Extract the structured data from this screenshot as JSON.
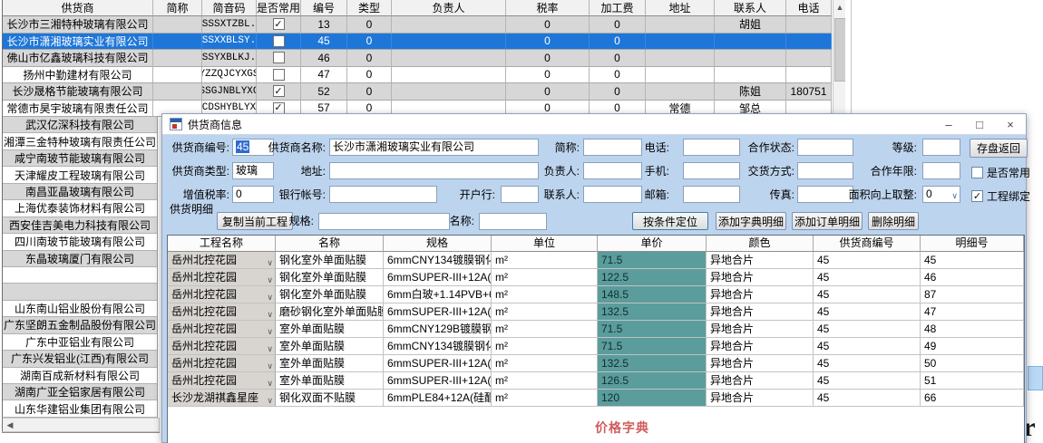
{
  "suppliers_table": {
    "headers": [
      "供货商",
      "简称",
      "简音码",
      "是否常用",
      "编号",
      "类型",
      "负责人",
      "税率",
      "加工费",
      "地址",
      "联系人",
      "电话"
    ],
    "rows": [
      {
        "name": "长沙市三湘特种玻璃有限公司",
        "abbr": "",
        "code": "CSSSXTZBL..",
        "common": true,
        "id": "13",
        "type": "0",
        "owner": "",
        "tax": "0",
        "fee": "0",
        "addr": "",
        "contact": "胡姐",
        "phone": "",
        "shade": true,
        "selected": false
      },
      {
        "name": "长沙市潇湘玻璃实业有限公司",
        "abbr": "",
        "code": "CSSXXBLSY..",
        "common": false,
        "id": "45",
        "type": "0",
        "owner": "",
        "tax": "0",
        "fee": "0",
        "addr": "",
        "contact": "",
        "phone": "",
        "shade": false,
        "selected": true
      },
      {
        "name": "佛山市亿鑫玻璃科技有限公司",
        "abbr": "",
        "code": "FSSYXBLKJ..",
        "common": false,
        "id": "46",
        "type": "0",
        "owner": "",
        "tax": "0",
        "fee": "0",
        "addr": "",
        "contact": "",
        "phone": "",
        "shade": true,
        "selected": false
      },
      {
        "name": "扬州中勤建材有限公司",
        "abbr": "",
        "code": "YZZQJCYXGS",
        "common": false,
        "id": "47",
        "type": "0",
        "owner": "",
        "tax": "0",
        "fee": "0",
        "addr": "",
        "contact": "",
        "phone": "",
        "shade": false,
        "selected": false
      },
      {
        "name": "长沙晟格节能玻璃有限公司",
        "abbr": "",
        "code": "CSSGJNBLYXGS",
        "common": true,
        "id": "52",
        "type": "0",
        "owner": "",
        "tax": "0",
        "fee": "0",
        "addr": "",
        "contact": "陈姐",
        "phone": "180751",
        "shade": true,
        "selected": false
      },
      {
        "name": "常德市昊宇玻璃有限责任公司",
        "abbr": "",
        "code": "CDSHYBLYX",
        "common": true,
        "id": "57",
        "type": "0",
        "owner": "",
        "tax": "0",
        "fee": "0",
        "addr": "常德",
        "contact": "邹总",
        "phone": "",
        "shade": false,
        "selected": false
      }
    ]
  },
  "supplier_list": [
    "武汉亿深科技有限公司",
    "湘潭三金特种玻璃有限责任公司",
    "咸宁南玻节能玻璃有限公司",
    "天津耀皮工程玻璃有限公司",
    "南昌亚晶玻璃有限公司",
    "上海优泰装饰材料有限公司",
    "西安佳吉美电力科技有限公司",
    "四川南玻节能玻璃有限公司",
    "东晶玻璃厦门有限公司",
    "",
    "",
    "山东南山铝业股份有限公司",
    "广东坚朗五金制品股份有限公司",
    "广东中亚铝业有限公司",
    "广东兴发铝业(江西)有限公司",
    "湖南百成新材料有限公司",
    "湖南广亚全铝家居有限公司",
    "山东华建铝业集团有限公司"
  ],
  "dialog": {
    "title": "供货商信息",
    "controls": {
      "minimize": "–",
      "maximize": "□",
      "close": "×"
    },
    "form": {
      "supplier_id": {
        "label": "供货商编号:",
        "value": "45"
      },
      "supplier_name": {
        "label": "供货商名称:",
        "value": "长沙市潇湘玻璃实业有限公司"
      },
      "abbr": {
        "label": "简称:",
        "value": ""
      },
      "phone": {
        "label": "电话:",
        "value": ""
      },
      "coop_status": {
        "label": "合作状态:",
        "value": ""
      },
      "grade": {
        "label": "等级:",
        "value": ""
      },
      "save_button": "存盘返回",
      "supplier_type": {
        "label": "供货商类型:",
        "value": "玻璃"
      },
      "address": {
        "label": "地址:",
        "value": ""
      },
      "owner": {
        "label": "负责人:",
        "value": ""
      },
      "mobile": {
        "label": "手机:",
        "value": ""
      },
      "delivery": {
        "label": "交货方式:",
        "value": ""
      },
      "coop_years": {
        "label": "合作年限:",
        "value": ""
      },
      "common_check": {
        "label": "是否常用",
        "checked": false
      },
      "vat": {
        "label": "增值税率:",
        "value": "0"
      },
      "bank_account": {
        "label": "银行帐号:",
        "value": ""
      },
      "bank": {
        "label": "开户行:",
        "value": ""
      },
      "contact": {
        "label": "联系人:",
        "value": ""
      },
      "email": {
        "label": "邮箱:",
        "value": ""
      },
      "fax": {
        "label": "传真:",
        "value": ""
      },
      "round_up": {
        "label": "面积向上取整:",
        "value": "0"
      },
      "bind_check": {
        "label": "工程绑定",
        "checked": true
      }
    },
    "detail": {
      "section_label": "供货明细",
      "copy_button": "复制当前工程",
      "spec_label": "规格:",
      "name_label": "名称:",
      "locate_button": "按条件定位",
      "add_dict_button": "添加字典明细",
      "add_order_button": "添加订单明细",
      "delete_button": "删除明细",
      "grid": {
        "headers": [
          "工程名称",
          "名称",
          "规格",
          "单位",
          "单价",
          "颜色",
          "供货商编号",
          "明细号"
        ],
        "rows": [
          [
            "岳州北控花园",
            "钢化室外单面贴膜",
            "6mmCNY134镀膜钢化",
            "m²",
            "71.5",
            "异地合片",
            "45",
            "45"
          ],
          [
            "岳州北控花园",
            "钢化室外单面贴膜",
            "6mmSUPER-III+12A(硅...",
            "m²",
            "122.5",
            "异地合片",
            "45",
            "46"
          ],
          [
            "岳州北控花园",
            "钢化室外单面贴膜",
            "6mm白玻+1.14PVB+6mm...",
            "m²",
            "148.5",
            "异地合片",
            "45",
            "87"
          ],
          [
            "岳州北控花园",
            "磨砂钢化室外单面贴膜",
            "6mmSUPER-III+12A(硅...",
            "m²",
            "132.5",
            "异地合片",
            "45",
            "47"
          ],
          [
            "岳州北控花园",
            "室外单面贴膜",
            "6mmCNY129B镀膜钢化",
            "m²",
            "71.5",
            "异地合片",
            "45",
            "48"
          ],
          [
            "岳州北控花园",
            "室外单面贴膜",
            "6mmCNY134镀膜钢化",
            "m²",
            "71.5",
            "异地合片",
            "45",
            "49"
          ],
          [
            "岳州北控花园",
            "室外单面贴膜",
            "6mmSUPER-III+12A(硅...",
            "m²",
            "132.5",
            "异地合片",
            "45",
            "50"
          ],
          [
            "岳州北控花园",
            "室外单面贴膜",
            "6mmSUPER-III+12A(硅...",
            "m²",
            "126.5",
            "异地合片",
            "45",
            "51"
          ],
          [
            "长沙龙湖祺鑫星座",
            "钢化双面不贴膜",
            "6mmPLE84+12A(硅酮胶...",
            "m²",
            "120",
            "异地合片",
            "45",
            "66"
          ]
        ]
      },
      "footer_label": "价格字典"
    }
  },
  "colors": {
    "selection": "#1e76d8",
    "price_cell": "#5b9c9c",
    "accent_red": "#d05c5c",
    "dialog_bg": "#bdd4ee"
  }
}
